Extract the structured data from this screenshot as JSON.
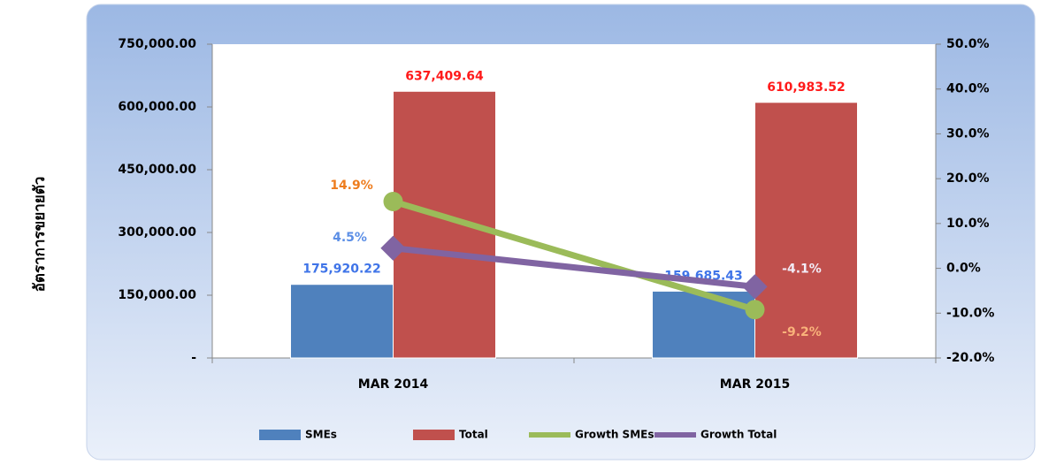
{
  "chart_data": {
    "type": "bar_line",
    "y_label": "อัตราการขยายตัว",
    "categories": [
      "MAR 2014",
      "MAR 2015"
    ],
    "series": [
      {
        "name": "SMEs",
        "type": "bar",
        "color": "#4f81bd",
        "label_colors": [
          "#3f74e8",
          "#3f74e8"
        ],
        "values": [
          175920.22,
          159685.43
        ],
        "value_labels": [
          "175,920.22",
          "159,685.43"
        ]
      },
      {
        "name": "Total",
        "type": "bar",
        "color": "#c0504d",
        "label_colors": [
          "#ff1a1a",
          "#ff1a1a"
        ],
        "values": [
          637409.64,
          610983.52
        ],
        "value_labels": [
          "637,409.64",
          "610,983.52"
        ]
      },
      {
        "name": "Growth SMEs",
        "type": "line",
        "axis": "y2",
        "color": "#9bbb59",
        "label_colors": [
          "#ee7d1e",
          "#f9b27a"
        ],
        "values": [
          14.9,
          -9.2
        ],
        "value_labels": [
          "14.9%",
          "-9.2%"
        ]
      },
      {
        "name": "Growth Total",
        "type": "line",
        "axis": "y2",
        "color": "#8064a2",
        "label_colors": [
          "#5b8ee6",
          "#f2ecf7"
        ],
        "values": [
          4.5,
          -4.1
        ],
        "value_labels": [
          "4.5%",
          "-4.1%"
        ]
      }
    ],
    "ylim": [
      0,
      750000
    ],
    "yticks": [
      {
        "value": 0,
        "label": "-"
      },
      {
        "value": 150000,
        "label": "150,000.00"
      },
      {
        "value": 300000,
        "label": "300,000.00"
      },
      {
        "value": 450000,
        "label": "450,000.00"
      },
      {
        "value": 600000,
        "label": "600,000.00"
      },
      {
        "value": 750000,
        "label": "750,000.00"
      }
    ],
    "y2lim": [
      -20,
      50
    ],
    "y2ticks": [
      {
        "value": -20,
        "label": "-20.0%"
      },
      {
        "value": -10,
        "label": "-10.0%"
      },
      {
        "value": 0,
        "label": "0.0%"
      },
      {
        "value": 10,
        "label": "10.0%"
      },
      {
        "value": 20,
        "label": "20.0%"
      },
      {
        "value": 30,
        "label": "30.0%"
      },
      {
        "value": 40,
        "label": "40.0%"
      },
      {
        "value": 50,
        "label": "50.0%"
      }
    ],
    "legend": "bottom"
  }
}
